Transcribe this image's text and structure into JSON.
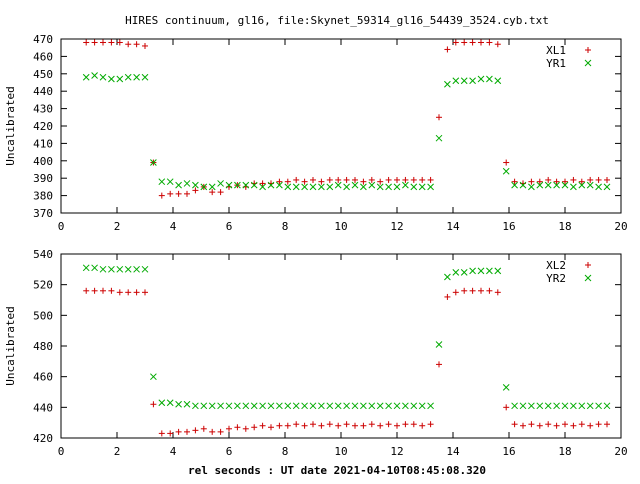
{
  "title": "HIRES continuum, gl16, file:Skynet_59314_gl16_54439_3524.cyb.txt",
  "xlabel": "rel seconds : UT date 2021-04-10T08:45:08.320",
  "colors": {
    "series_a": "#cc0000",
    "series_b": "#00aa00",
    "frame": "#000000"
  },
  "chart_data": [
    {
      "type": "scatter",
      "ylabel": "Uncalibrated",
      "xlim": [
        0,
        20
      ],
      "ylim": [
        370,
        470
      ],
      "xticks": [
        0,
        2,
        4,
        6,
        8,
        10,
        12,
        14,
        16,
        18,
        20
      ],
      "yticks": [
        370,
        380,
        390,
        400,
        410,
        420,
        430,
        440,
        450,
        460,
        470
      ],
      "legend_position": "top-right",
      "series": [
        {
          "name": "XL1",
          "marker": "plus",
          "color": "#cc0000",
          "x": [
            0.9,
            1.2,
            1.5,
            1.8,
            2.1,
            2.4,
            2.7,
            3.0,
            3.3,
            3.6,
            3.9,
            4.2,
            4.5,
            4.8,
            5.1,
            5.4,
            5.7,
            6.0,
            6.3,
            6.6,
            6.9,
            7.2,
            7.5,
            7.8,
            8.1,
            8.4,
            8.7,
            9.0,
            9.3,
            9.6,
            9.9,
            10.2,
            10.5,
            10.8,
            11.1,
            11.4,
            11.7,
            12.0,
            12.3,
            12.6,
            12.9,
            13.2,
            13.5,
            13.8,
            14.1,
            14.4,
            14.7,
            15.0,
            15.3,
            15.6,
            15.9,
            16.2,
            16.5,
            16.8,
            17.1,
            17.4,
            17.7,
            18.0,
            18.3,
            18.6,
            18.9,
            19.2,
            19.5
          ],
          "y": [
            468,
            468,
            468,
            468,
            468,
            467,
            467,
            466,
            399,
            380,
            381,
            381,
            381,
            383,
            385,
            382,
            382,
            385,
            386,
            385,
            387,
            387,
            387,
            388,
            388,
            389,
            388,
            389,
            388,
            389,
            389,
            389,
            389,
            388,
            389,
            388,
            389,
            389,
            389,
            389,
            389,
            389,
            425,
            464,
            468,
            468,
            468,
            468,
            468,
            467,
            399,
            388,
            387,
            388,
            388,
            389,
            388,
            388,
            389,
            388,
            389,
            389,
            389
          ]
        },
        {
          "name": "YR1",
          "marker": "cross",
          "color": "#00aa00",
          "x": [
            0.9,
            1.2,
            1.5,
            1.8,
            2.1,
            2.4,
            2.7,
            3.0,
            3.3,
            3.6,
            3.9,
            4.2,
            4.5,
            4.8,
            5.1,
            5.4,
            5.7,
            6.0,
            6.3,
            6.6,
            6.9,
            7.2,
            7.5,
            7.8,
            8.1,
            8.4,
            8.7,
            9.0,
            9.3,
            9.6,
            9.9,
            10.2,
            10.5,
            10.8,
            11.1,
            11.4,
            11.7,
            12.0,
            12.3,
            12.6,
            12.9,
            13.2,
            13.5,
            13.8,
            14.1,
            14.4,
            14.7,
            15.0,
            15.3,
            15.6,
            15.9,
            16.2,
            16.5,
            16.8,
            17.1,
            17.4,
            17.7,
            18.0,
            18.3,
            18.6,
            18.9,
            19.2,
            19.5
          ],
          "y": [
            448,
            449,
            448,
            447,
            447,
            448,
            448,
            448,
            399,
            388,
            388,
            386,
            387,
            386,
            385,
            385,
            387,
            386,
            386,
            386,
            386,
            385,
            386,
            386,
            385,
            385,
            385,
            385,
            385,
            385,
            386,
            385,
            386,
            385,
            386,
            385,
            385,
            385,
            386,
            385,
            385,
            385,
            413,
            444,
            446,
            446,
            446,
            447,
            447,
            446,
            394,
            386,
            386,
            385,
            386,
            386,
            386,
            386,
            385,
            386,
            386,
            385,
            385
          ]
        }
      ]
    },
    {
      "type": "scatter",
      "ylabel": "Uncalibrated",
      "xlim": [
        0,
        20
      ],
      "ylim": [
        420,
        540
      ],
      "xticks": [
        0,
        2,
        4,
        6,
        8,
        10,
        12,
        14,
        16,
        18,
        20
      ],
      "yticks": [
        420,
        440,
        460,
        480,
        500,
        520,
        540
      ],
      "legend_position": "top-right",
      "series": [
        {
          "name": "XL2",
          "marker": "plus",
          "color": "#cc0000",
          "x": [
            0.9,
            1.2,
            1.5,
            1.8,
            2.1,
            2.4,
            2.7,
            3.0,
            3.3,
            3.6,
            3.9,
            4.2,
            4.5,
            4.8,
            5.1,
            5.4,
            5.7,
            6.0,
            6.3,
            6.6,
            6.9,
            7.2,
            7.5,
            7.8,
            8.1,
            8.4,
            8.7,
            9.0,
            9.3,
            9.6,
            9.9,
            10.2,
            10.5,
            10.8,
            11.1,
            11.4,
            11.7,
            12.0,
            12.3,
            12.6,
            12.9,
            13.2,
            13.5,
            13.8,
            14.1,
            14.4,
            14.7,
            15.0,
            15.3,
            15.6,
            15.9,
            16.2,
            16.5,
            16.8,
            17.1,
            17.4,
            17.7,
            18.0,
            18.3,
            18.6,
            18.9,
            19.2,
            19.5
          ],
          "y": [
            516,
            516,
            516,
            516,
            515,
            515,
            515,
            515,
            442,
            423,
            423,
            424,
            424,
            425,
            426,
            424,
            424,
            426,
            427,
            426,
            427,
            428,
            427,
            428,
            428,
            429,
            428,
            429,
            428,
            429,
            428,
            429,
            428,
            428,
            429,
            428,
            429,
            428,
            429,
            429,
            428,
            429,
            468,
            512,
            515,
            516,
            516,
            516,
            516,
            515,
            440,
            429,
            428,
            429,
            428,
            429,
            428,
            429,
            428,
            429,
            428,
            429,
            429
          ]
        },
        {
          "name": "YR2",
          "marker": "cross",
          "color": "#00aa00",
          "x": [
            0.9,
            1.2,
            1.5,
            1.8,
            2.1,
            2.4,
            2.7,
            3.0,
            3.3,
            3.6,
            3.9,
            4.2,
            4.5,
            4.8,
            5.1,
            5.4,
            5.7,
            6.0,
            6.3,
            6.6,
            6.9,
            7.2,
            7.5,
            7.8,
            8.1,
            8.4,
            8.7,
            9.0,
            9.3,
            9.6,
            9.9,
            10.2,
            10.5,
            10.8,
            11.1,
            11.4,
            11.7,
            12.0,
            12.3,
            12.6,
            12.9,
            13.2,
            13.5,
            13.8,
            14.1,
            14.4,
            14.7,
            15.0,
            15.3,
            15.6,
            15.9,
            16.2,
            16.5,
            16.8,
            17.1,
            17.4,
            17.7,
            18.0,
            18.3,
            18.6,
            18.9,
            19.2,
            19.5
          ],
          "y": [
            531,
            531,
            530,
            530,
            530,
            530,
            530,
            530,
            460,
            443,
            443,
            442,
            442,
            441,
            441,
            441,
            441,
            441,
            441,
            441,
            441,
            441,
            441,
            441,
            441,
            441,
            441,
            441,
            441,
            441,
            441,
            441,
            441,
            441,
            441,
            441,
            441,
            441,
            441,
            441,
            441,
            441,
            481,
            525,
            528,
            528,
            529,
            529,
            529,
            529,
            453,
            441,
            441,
            441,
            441,
            441,
            441,
            441,
            441,
            441,
            441,
            441,
            441
          ]
        }
      ]
    }
  ]
}
